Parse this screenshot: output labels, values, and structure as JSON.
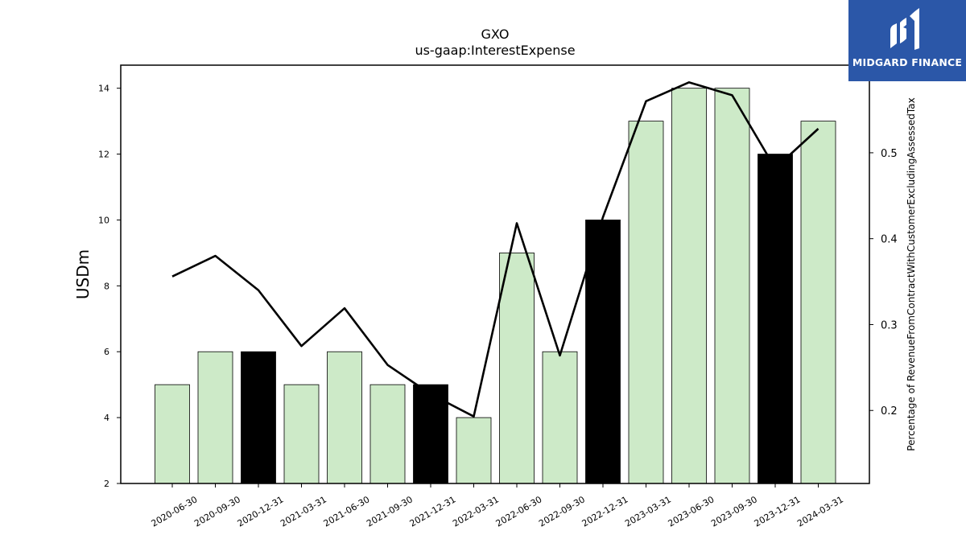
{
  "chart_data": {
    "type": "bar",
    "title": "GXO",
    "subtitle": "us-gaap:InterestExpense",
    "ylabel": "USDm",
    "y2label": "Percentage of RevenueFromContractWithCustomerExcludingAssessedTax",
    "ylim": [
      2,
      14.7
    ],
    "y2lim": [
      0.115,
      0.602
    ],
    "yticks": [
      2,
      4,
      6,
      8,
      10,
      12,
      14
    ],
    "y2ticks": [
      0.2,
      0.3,
      0.4,
      0.5
    ],
    "y2ticklabels": [
      "0.2",
      "0.3",
      "0.4",
      "0.5"
    ],
    "grid": false,
    "categories": [
      "2020-06-30",
      "2020-09-30",
      "2020-12-31",
      "2021-03-31",
      "2021-06-30",
      "2021-09-30",
      "2021-12-31",
      "2022-03-31",
      "2022-06-30",
      "2022-09-30",
      "2022-12-31",
      "2023-03-31",
      "2023-06-30",
      "2023-09-30",
      "2023-12-31",
      "2024-03-31"
    ],
    "series": [
      {
        "axis": "left",
        "kind": "bar",
        "values": [
          5,
          6,
          6,
          5,
          6,
          5,
          5,
          4,
          9,
          6,
          10,
          13,
          14,
          14,
          12,
          13
        ],
        "highlight": [
          false,
          false,
          true,
          false,
          false,
          false,
          true,
          false,
          false,
          false,
          true,
          false,
          false,
          false,
          true,
          false
        ]
      },
      {
        "axis": "right",
        "kind": "line",
        "values": [
          0.356,
          0.38,
          0.34,
          0.275,
          0.319,
          0.253,
          0.219,
          0.193,
          0.418,
          0.264,
          0.425,
          0.56,
          0.582,
          0.567,
          0.482,
          0.528
        ]
      }
    ],
    "colors": {
      "bar": "#cdeac8",
      "bar_highlight": "#000000",
      "line": "#000000"
    }
  },
  "logo": {
    "text": "MIDGARD FINANCE",
    "bg": "#2b57a8"
  }
}
